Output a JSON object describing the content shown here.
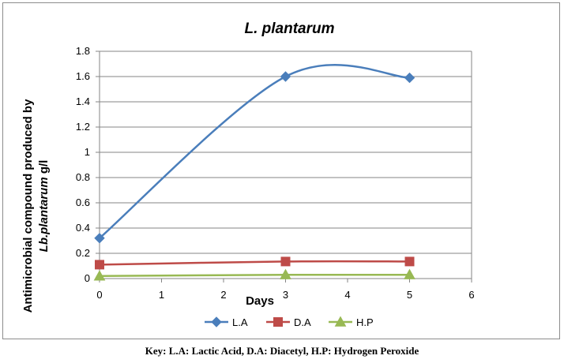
{
  "chart_data": {
    "type": "line",
    "title": "L. plantarum",
    "xlabel": "Days",
    "ylabel_line1": "Antimicrobial compound produced by",
    "ylabel_line2_italic": "Lb.plantarum",
    "ylabel_line2_rest": " g/l",
    "xlim": [
      0,
      6
    ],
    "ylim": [
      0,
      1.8
    ],
    "x_ticks": [
      "0",
      "1",
      "2",
      "3",
      "4",
      "5",
      "6"
    ],
    "y_ticks": [
      "0",
      "0.2",
      "0.4",
      "0.6",
      "0.8",
      "1",
      "1.2",
      "1.4",
      "1.6",
      "1.8"
    ],
    "grid": "horizontal",
    "smooth": true,
    "legend_position": "bottom",
    "series": [
      {
        "name": "L.A",
        "color": "#4a7ebb",
        "marker": "diamond",
        "points": [
          {
            "x": 0,
            "y": 0.32
          },
          {
            "x": 3,
            "y": 1.6
          },
          {
            "x": 5,
            "y": 1.59
          }
        ]
      },
      {
        "name": "D.A",
        "color": "#be4b48",
        "marker": "square",
        "points": [
          {
            "x": 0,
            "y": 0.11
          },
          {
            "x": 3,
            "y": 0.135
          },
          {
            "x": 5,
            "y": 0.135
          }
        ]
      },
      {
        "name": "H.P",
        "color": "#98b954",
        "marker": "triangle",
        "points": [
          {
            "x": 0,
            "y": 0.02
          },
          {
            "x": 3,
            "y": 0.03
          },
          {
            "x": 5,
            "y": 0.03
          }
        ]
      }
    ]
  },
  "caption": "Key: L.A: Lactic Acid, D.A: Diacetyl, H.P: Hydrogen Peroxide"
}
